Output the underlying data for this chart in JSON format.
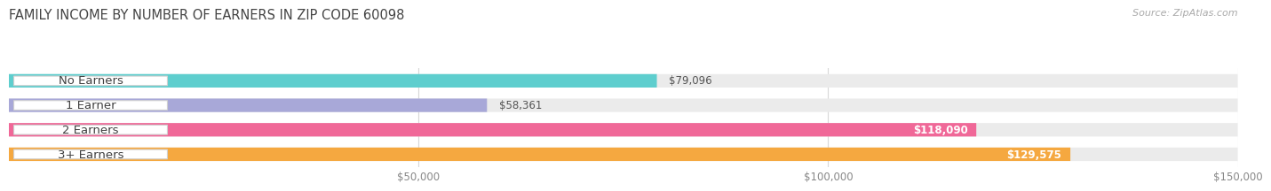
{
  "title": "FAMILY INCOME BY NUMBER OF EARNERS IN ZIP CODE 60098",
  "source": "Source: ZipAtlas.com",
  "categories": [
    "No Earners",
    "1 Earner",
    "2 Earners",
    "3+ Earners"
  ],
  "values": [
    79096,
    58361,
    118090,
    129575
  ],
  "bar_colors": [
    "#5ecece",
    "#a8a8d8",
    "#f06898",
    "#f5a840"
  ],
  "label_values": [
    "$79,096",
    "$58,361",
    "$118,090",
    "$129,575"
  ],
  "bg_color": "#ffffff",
  "bar_bg_color": "#ebebeb",
  "xlim": [
    0,
    150000
  ],
  "xticks": [
    50000,
    100000,
    150000
  ],
  "xtick_labels": [
    "$50,000",
    "$100,000",
    "$150,000"
  ],
  "title_fontsize": 10.5,
  "source_fontsize": 8,
  "label_fontsize": 8.5,
  "cat_fontsize": 9.5,
  "inside_label_threshold": 100000
}
